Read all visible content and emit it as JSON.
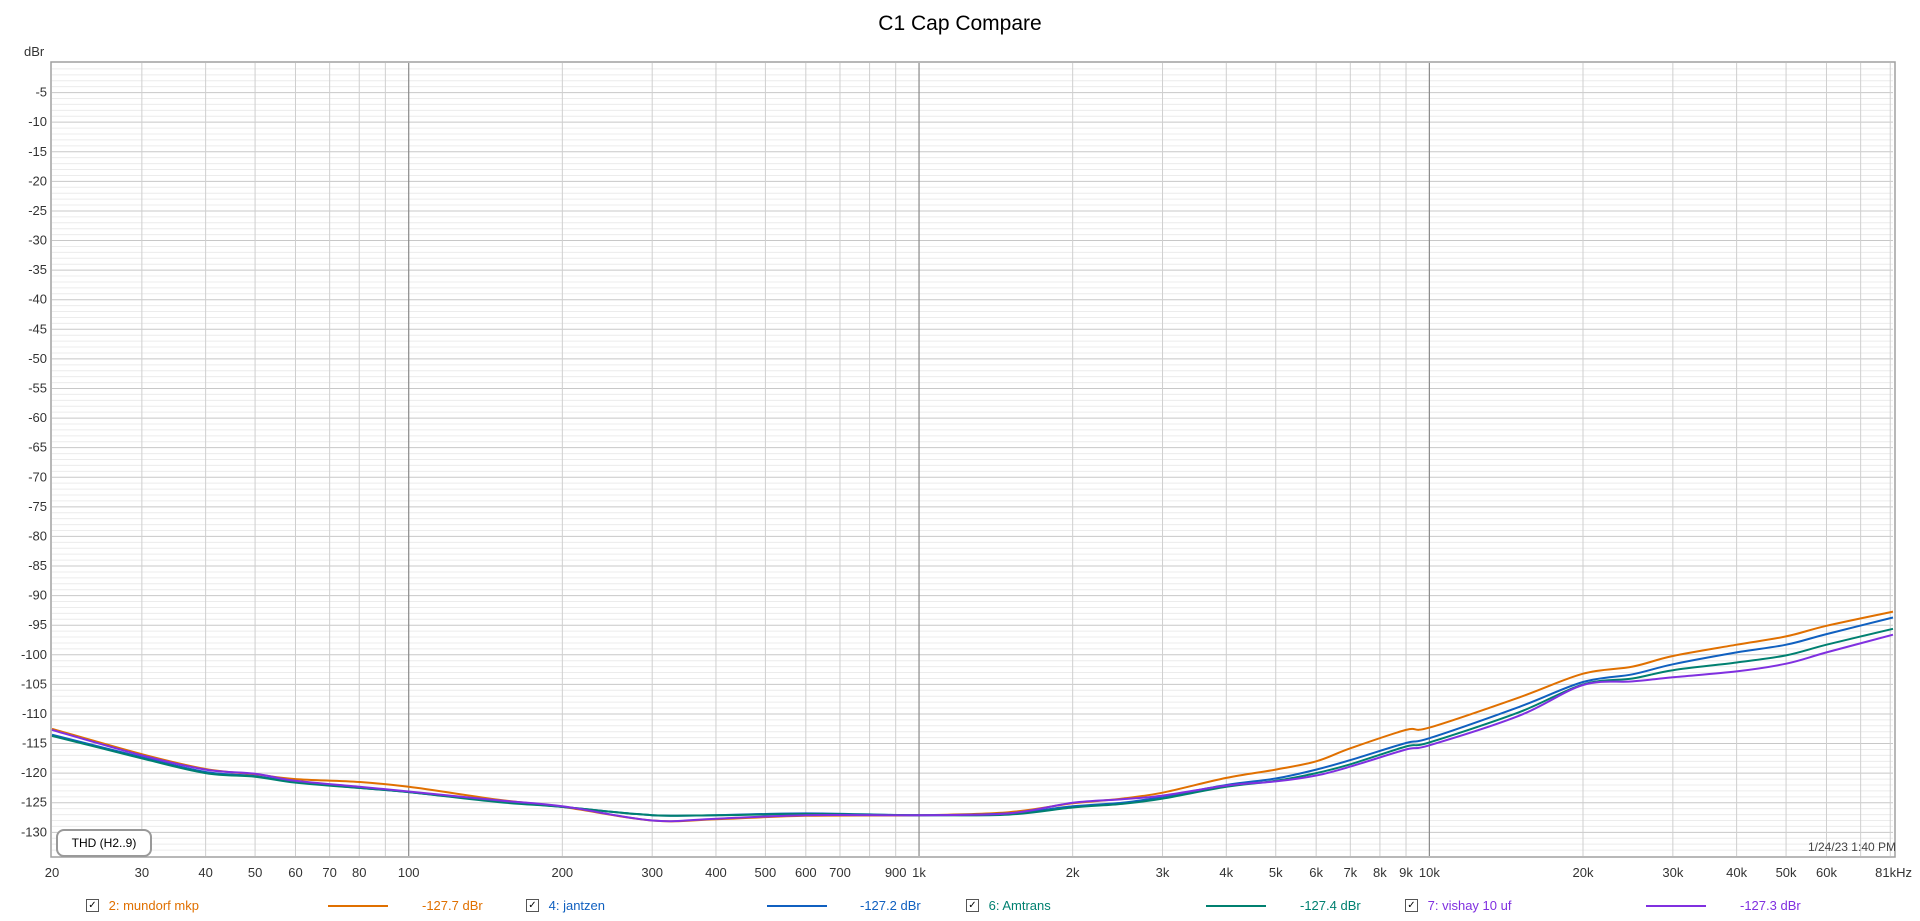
{
  "chart_data": {
    "type": "line",
    "title": "C1 Cap Compare",
    "ylabel": "dBr",
    "xscale": "log",
    "xlim": [
      20,
      81000
    ],
    "ylim": [
      -134,
      0
    ],
    "y_ticks": [
      -5,
      -10,
      -15,
      -20,
      -25,
      -30,
      -35,
      -40,
      -45,
      -50,
      -55,
      -60,
      -65,
      -70,
      -75,
      -80,
      -85,
      -90,
      -95,
      -100,
      -105,
      -110,
      -115,
      -120,
      -125,
      -130
    ],
    "x_ticks": [
      {
        "v": 20,
        "label": "20"
      },
      {
        "v": 30,
        "label": "30"
      },
      {
        "v": 40,
        "label": "40"
      },
      {
        "v": 50,
        "label": "50"
      },
      {
        "v": 60,
        "label": "60"
      },
      {
        "v": 70,
        "label": "70"
      },
      {
        "v": 80,
        "label": "80"
      },
      {
        "v": 100,
        "label": "100"
      },
      {
        "v": 200,
        "label": "200"
      },
      {
        "v": 300,
        "label": "300"
      },
      {
        "v": 400,
        "label": "400"
      },
      {
        "v": 500,
        "label": "500"
      },
      {
        "v": 600,
        "label": "600"
      },
      {
        "v": 700,
        "label": "700"
      },
      {
        "v": 900,
        "label": "900"
      },
      {
        "v": 1000,
        "label": "1k"
      },
      {
        "v": 2000,
        "label": "2k"
      },
      {
        "v": 3000,
        "label": "3k"
      },
      {
        "v": 4000,
        "label": "4k"
      },
      {
        "v": 5000,
        "label": "5k"
      },
      {
        "v": 6000,
        "label": "6k"
      },
      {
        "v": 7000,
        "label": "7k"
      },
      {
        "v": 8000,
        "label": "8k"
      },
      {
        "v": 9000,
        "label": "9k"
      },
      {
        "v": 10000,
        "label": "10k"
      },
      {
        "v": 20000,
        "label": "20k"
      },
      {
        "v": 30000,
        "label": "30k"
      },
      {
        "v": 40000,
        "label": "40k"
      },
      {
        "v": 50000,
        "label": "50k"
      },
      {
        "v": 60000,
        "label": "60k"
      },
      {
        "v": 81000,
        "label": "81kHz"
      }
    ],
    "grid": true,
    "legend_position": "bottom",
    "series": [
      {
        "name": "2: mundorf mkp",
        "color": "#e07000",
        "value": "-127.7 dBr",
        "points": [
          [
            20,
            -112.5
          ],
          [
            30,
            -116.8
          ],
          [
            40,
            -119.3
          ],
          [
            50,
            -120.2
          ],
          [
            60,
            -121
          ],
          [
            80,
            -121.5
          ],
          [
            100,
            -122.3
          ],
          [
            150,
            -124.5
          ],
          [
            200,
            -125.7
          ],
          [
            300,
            -128
          ],
          [
            400,
            -127.8
          ],
          [
            600,
            -127.2
          ],
          [
            1000,
            -127.1
          ],
          [
            1500,
            -126.6
          ],
          [
            2000,
            -125.1
          ],
          [
            2500,
            -124.3
          ],
          [
            3000,
            -123.3
          ],
          [
            4000,
            -120.8
          ],
          [
            5000,
            -119.4
          ],
          [
            6000,
            -118
          ],
          [
            7000,
            -115.8
          ],
          [
            9000,
            -112.7
          ],
          [
            10000,
            -112.3
          ],
          [
            15000,
            -107.2
          ],
          [
            20000,
            -103.2
          ],
          [
            25000,
            -102
          ],
          [
            30000,
            -100.2
          ],
          [
            40000,
            -98.3
          ],
          [
            50000,
            -96.9
          ],
          [
            60000,
            -95.1
          ],
          [
            81000,
            -92.7
          ]
        ]
      },
      {
        "name": "4: jantzen",
        "color": "#1060c0",
        "value": "-127.2 dBr",
        "points": [
          [
            20,
            -113.5
          ],
          [
            30,
            -117.3
          ],
          [
            40,
            -119.8
          ],
          [
            50,
            -120.5
          ],
          [
            60,
            -121.5
          ],
          [
            80,
            -122.5
          ],
          [
            100,
            -123.2
          ],
          [
            150,
            -124.8
          ],
          [
            200,
            -125.7
          ],
          [
            300,
            -127.1
          ],
          [
            400,
            -127.1
          ],
          [
            600,
            -126.8
          ],
          [
            1000,
            -127.1
          ],
          [
            1500,
            -126.8
          ],
          [
            2000,
            -125.6
          ],
          [
            2500,
            -125
          ],
          [
            3000,
            -124
          ],
          [
            4000,
            -122
          ],
          [
            5000,
            -120.9
          ],
          [
            6000,
            -119.4
          ],
          [
            7000,
            -117.8
          ],
          [
            9000,
            -114.9
          ],
          [
            10000,
            -114.1
          ],
          [
            15000,
            -108.8
          ],
          [
            20000,
            -104.6
          ],
          [
            25000,
            -103.3
          ],
          [
            30000,
            -101.6
          ],
          [
            40000,
            -99.6
          ],
          [
            50000,
            -98.3
          ],
          [
            60000,
            -96.5
          ],
          [
            81000,
            -93.7
          ]
        ]
      },
      {
        "name": "6: Amtrans",
        "color": "#008070",
        "value": "-127.4 dBr",
        "points": [
          [
            20,
            -113.7
          ],
          [
            30,
            -117.5
          ],
          [
            40,
            -120
          ],
          [
            50,
            -120.6
          ],
          [
            60,
            -121.6
          ],
          [
            80,
            -122.5
          ],
          [
            100,
            -123.2
          ],
          [
            150,
            -124.9
          ],
          [
            200,
            -125.7
          ],
          [
            300,
            -127.1
          ],
          [
            400,
            -127.1
          ],
          [
            600,
            -126.9
          ],
          [
            1000,
            -127.1
          ],
          [
            1500,
            -127
          ],
          [
            2000,
            -125.8
          ],
          [
            2500,
            -125.2
          ],
          [
            3000,
            -124.3
          ],
          [
            4000,
            -122.3
          ],
          [
            5000,
            -121.3
          ],
          [
            6000,
            -120
          ],
          [
            7000,
            -118.5
          ],
          [
            9000,
            -115.5
          ],
          [
            10000,
            -114.8
          ],
          [
            15000,
            -109.7
          ],
          [
            20000,
            -105
          ],
          [
            25000,
            -104
          ],
          [
            30000,
            -102.6
          ],
          [
            40000,
            -101.3
          ],
          [
            50000,
            -100.1
          ],
          [
            60000,
            -98.3
          ],
          [
            81000,
            -95.6
          ]
        ]
      },
      {
        "name": "7: vishay 10 uf",
        "color": "#8030e0",
        "value": "-127.3 dBr",
        "points": [
          [
            20,
            -112.7
          ],
          [
            30,
            -117
          ],
          [
            40,
            -119.4
          ],
          [
            50,
            -120.1
          ],
          [
            60,
            -121.3
          ],
          [
            80,
            -122.3
          ],
          [
            100,
            -123.1
          ],
          [
            150,
            -124.6
          ],
          [
            200,
            -125.6
          ],
          [
            300,
            -128
          ],
          [
            400,
            -127.7
          ],
          [
            600,
            -127.1
          ],
          [
            1000,
            -127.1
          ],
          [
            1500,
            -126.8
          ],
          [
            2000,
            -125
          ],
          [
            2500,
            -124.4
          ],
          [
            3000,
            -123.8
          ],
          [
            4000,
            -122.1
          ],
          [
            5000,
            -121.4
          ],
          [
            6000,
            -120.4
          ],
          [
            7000,
            -118.9
          ],
          [
            9000,
            -116
          ],
          [
            10000,
            -115.3
          ],
          [
            15000,
            -110.3
          ],
          [
            20000,
            -105.1
          ],
          [
            25000,
            -104.5
          ],
          [
            30000,
            -103.8
          ],
          [
            40000,
            -102.8
          ],
          [
            50000,
            -101.5
          ],
          [
            60000,
            -99.6
          ],
          [
            81000,
            -96.6
          ]
        ]
      }
    ]
  },
  "ui": {
    "badge": "THD (H2..9)",
    "timestamp": "1/24/23 1:40 PM",
    "check_mark": "✓"
  }
}
